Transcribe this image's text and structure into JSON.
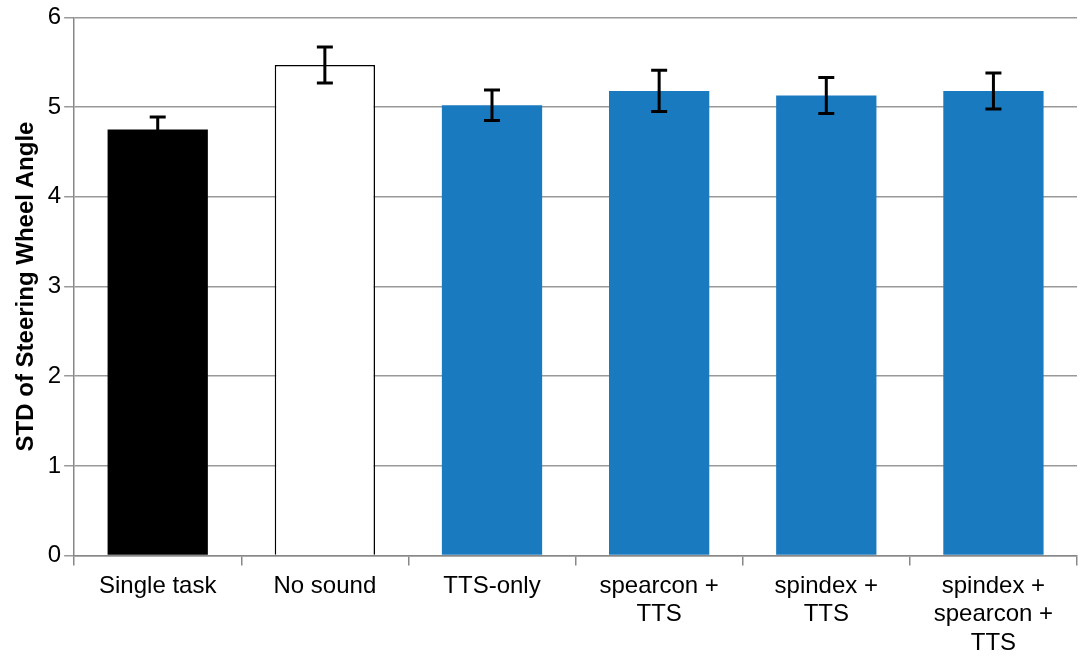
{
  "chart_data": {
    "type": "bar",
    "ylabel": "STD of Steering Wheel Angle",
    "categories": [
      "Single task",
      "No sound",
      "TTS-only",
      "spearcon + TTS",
      "spindex + TTS",
      "spindex + spearcon + TTS"
    ],
    "values": [
      4.75,
      5.47,
      5.02,
      5.18,
      5.13,
      5.18
    ],
    "colors": [
      "#000000",
      "#ffffff",
      "#1a7abf",
      "#1a7abf",
      "#1a7abf",
      "#1a7abf"
    ],
    "errors": [
      0.14,
      0.2,
      0.17,
      0.23,
      0.2,
      0.2
    ],
    "ylim": [
      0,
      6
    ],
    "yticks": [
      0,
      1,
      2,
      3,
      4,
      5,
      6
    ],
    "grid": "y",
    "legend": false
  }
}
